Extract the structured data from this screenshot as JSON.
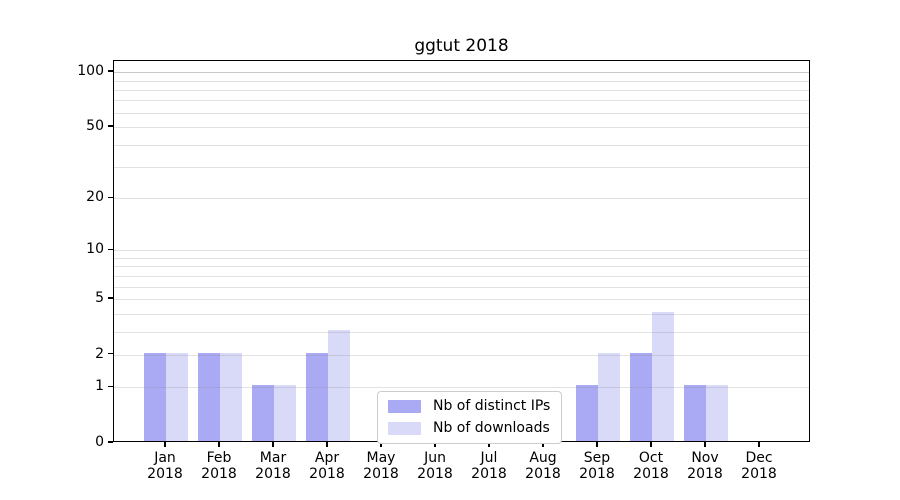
{
  "chart_data": {
    "type": "bar",
    "title": "ggtut 2018",
    "categories": [
      "Jan",
      "Feb",
      "Mar",
      "Apr",
      "May",
      "Jun",
      "Jul",
      "Aug",
      "Sep",
      "Oct",
      "Nov",
      "Dec"
    ],
    "category_year": "2018",
    "series": [
      {
        "name": "Nb of distinct IPs",
        "color": "#a9a9f4",
        "values": [
          2,
          2,
          1,
          2,
          0,
          0,
          0,
          0,
          1,
          2,
          1,
          0
        ]
      },
      {
        "name": "Nb of downloads",
        "color": "#d9d9f8",
        "values": [
          2,
          2,
          1,
          3,
          0,
          0,
          0,
          0,
          2,
          4,
          1,
          0
        ]
      }
    ],
    "xlabel": "",
    "ylabel": "",
    "y_scale": "log1p",
    "ylim": [
      0,
      115
    ],
    "y_ticks": [
      0,
      1,
      2,
      5,
      10,
      20,
      50,
      100
    ],
    "y_minor_gridlines": [
      3,
      4,
      6,
      7,
      8,
      9,
      30,
      40,
      60,
      70,
      80,
      90
    ],
    "grid": true,
    "legend_position": "lower-center-inside"
  }
}
